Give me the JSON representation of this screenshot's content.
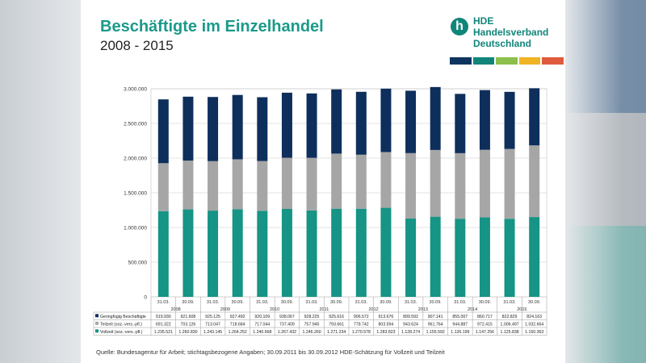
{
  "header": {
    "title": "Beschäftigte im Einzelhandel",
    "subtitle": "2008 - 2015"
  },
  "logo": {
    "mark": "h",
    "line1": "HDE",
    "line2": "Handelsverband",
    "line3": "Deutschland",
    "stripe_colors": [
      "#0d3560",
      "#10857a",
      "#8cbf4c",
      "#f0b323",
      "#e05a3c"
    ]
  },
  "source": "Quelle: Bundesagentur für Arbeit; stichtagsbezogene Angaben; 30.09.2011 bis 30.09.2012 HDE-Schätzung für Vollzeit und Teilzeit",
  "colors": {
    "vollzeit": "#169485",
    "teilzeit": "#a6a6a6",
    "gering": "#0e2f5c"
  },
  "chart_data": {
    "type": "bar",
    "stacked": true,
    "categories": [
      "31.03.",
      "30.09.",
      "31.03.",
      "30.09.",
      "31.03.",
      "30.09.",
      "31.03.",
      "30.09.",
      "31.03.",
      "30.09.",
      "31.03.",
      "30.09.",
      "31.03.",
      "30.09.",
      "31.03.",
      "30.09."
    ],
    "years": [
      "2008",
      "2009",
      "2010",
      "2011",
      "2012",
      "2013",
      "2014",
      "2015"
    ],
    "ylim": [
      0,
      3000000
    ],
    "yticks": [
      "0",
      "500.000",
      "1.000.000",
      "1.500.000",
      "2.000.000",
      "2.500.000",
      "3.000.000"
    ],
    "series": [
      {
        "name": "Vollzeit (soz.-vers.-pfl.)",
        "values": [
          1235521,
          1260830,
          1243145,
          1264252,
          1240668,
          1267432,
          1246260,
          1271234,
          1270578,
          1283823,
          1128274,
          1155592,
          1126199,
          1147256,
          1125838,
          1150363
        ],
        "labels": [
          "1.235.521",
          "1.260.830",
          "1.243.145",
          "1.264.252",
          "1.240.668",
          "1.267.432",
          "1.246.260",
          "1.271.234",
          "1.270.578",
          "1.283.823",
          "1.128.274",
          "1.155.592",
          "1.126.199",
          "1.147.256",
          "1.125.838",
          "1.150.363"
        ]
      },
      {
        "name": "Teilzeit (soz.-vers.-pfl.)",
        "values": [
          691322,
          703126,
          713047,
          718684,
          717044,
          737409,
          757945,
          793661,
          778742,
          803594,
          943624,
          961764,
          944887,
          972415,
          1006497,
          1032664
        ],
        "labels": [
          "691.322",
          "703.126",
          "713.047",
          "718.684",
          "717.044",
          "737.409",
          "757.945",
          "793.661",
          "778.742",
          "803.594",
          "943.624",
          "961.764",
          "944.887",
          "972.415",
          "1.006.497",
          "1.032.664"
        ]
      },
      {
        "name": "Geringfügig Beschäftigte",
        "values": [
          919930,
          921608,
          925125,
          927492,
          920109,
          938067,
          928225,
          925616,
          906572,
          913676,
          899592,
          907141,
          855007,
          860717,
          822829,
          824163
        ],
        "labels": [
          "919.930",
          "921.608",
          "925.125",
          "927.492",
          "920.109",
          "938.067",
          "928.225",
          "925.616",
          "906.572",
          "913.676",
          "899.592",
          "907.141",
          "855.007",
          "860.717",
          "822.829",
          "824.163"
        ]
      }
    ]
  }
}
